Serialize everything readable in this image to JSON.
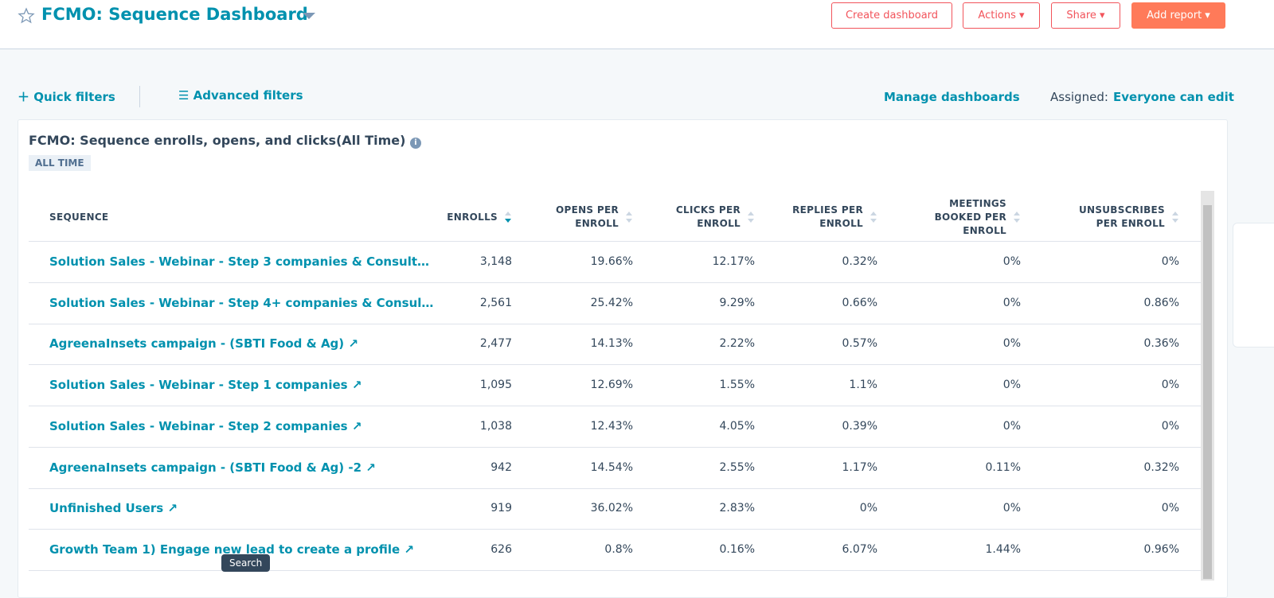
{
  "header": {
    "title": "FCMO: Sequence Dashboard",
    "buttons": [
      "Create dashboard",
      "Actions",
      "Share",
      "Add report"
    ]
  },
  "filters": {
    "quick": "Quick filters",
    "advanced": "Advanced filters",
    "manage": "Manage dashboards",
    "assigned_label": "Assigned:",
    "assigned_value": "Everyone can edit"
  },
  "report": {
    "title": "FCMO: Sequence enrolls, opens, and clicks(All Time)",
    "badge": "ALL TIME",
    "table": {
      "columns": [
        "SEQUENCE",
        "ENROLLS",
        "OPENS PER ENROLL",
        "CLICKS PER ENROLL",
        "REPLIES PER ENROLL",
        "MEETINGS BOOKED PER ENROLL",
        "UNSUBSCRIBES PER ENROLL"
      ],
      "rows": [
        [
          "Solution Sales - Webinar - Step 3 companies & Consult…",
          "3,148",
          "19.66%",
          "12.17%",
          "0.32%",
          "0%",
          "0%"
        ],
        [
          "Solution Sales - Webinar - Step 4+ companies & Consul…",
          "2,561",
          "25.42%",
          "9.29%",
          "0.66%",
          "0%",
          "0.86%"
        ],
        [
          "AgreenaInsets campaign - (SBTI Food & Ag)",
          "2,477",
          "14.13%",
          "2.22%",
          "0.57%",
          "0%",
          "0.36%"
        ],
        [
          "Solution Sales - Webinar - Step 1 companies",
          "1,095",
          "12.69%",
          "1.55%",
          "1.1%",
          "0%",
          "0%"
        ],
        [
          "Solution Sales - Webinar - Step 2 companies",
          "1,038",
          "12.43%",
          "4.05%",
          "0.39%",
          "0%",
          "0%"
        ],
        [
          "AgreenaInsets campaign - (SBTI Food & Ag) -2",
          "942",
          "14.54%",
          "2.55%",
          "1.17%",
          "0.11%",
          "0.32%"
        ],
        [
          "Unfinished Users",
          "919",
          "36.02%",
          "2.83%",
          "0%",
          "0%",
          "0%"
        ],
        [
          "Growth Team 1) Engage new lead to create a profile",
          "626",
          "0.8%",
          "0.16%",
          "6.07%",
          "1.44%",
          "0.96%"
        ]
      ]
    }
  },
  "tooltip": "Search"
}
